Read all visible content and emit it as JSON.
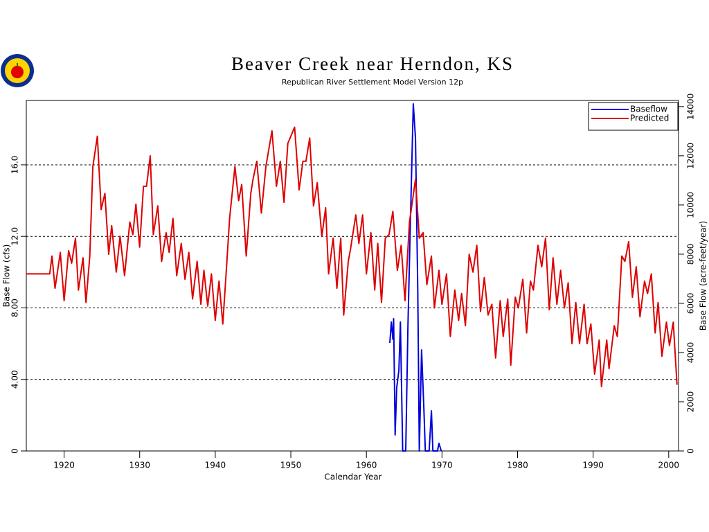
{
  "chart_data": {
    "type": "line",
    "title": "Beaver Creek near Herndon, KS",
    "subtitle": "Republican River Settlement Model Version 12p",
    "xlabel": "Calendar Year",
    "ylabel": "Base Flow (cfs)",
    "y2label": "Base Flow (acre-feet/year)",
    "xlim": [
      1915,
      2001.3
    ],
    "xticks": [
      1920,
      1930,
      1940,
      1950,
      1960,
      1970,
      1980,
      1990,
      2000
    ],
    "ylim": [
      0,
      19.6
    ],
    "yticks": [
      0,
      {
        "value": 4,
        "label": "4.00"
      },
      {
        "value": 8,
        "label": "8.00"
      },
      {
        "value": 12,
        "label": "12.0"
      },
      {
        "value": 16,
        "label": "16.0"
      }
    ],
    "y2lim": [
      0,
      14250
    ],
    "y2ticks": [
      0,
      2000,
      4000,
      6000,
      8000,
      10000,
      12000,
      14000
    ],
    "grid": true,
    "legend": "upper right",
    "series": [
      {
        "name": "Baseflow",
        "color": "#0000dd",
        "axis": "y2",
        "x": [
          1963.1,
          1963.3,
          1963.5,
          1963.6,
          1963.8,
          1964,
          1964.3,
          1964.5,
          1964.8,
          1965.2,
          1965.5,
          1965.8,
          1966.2,
          1966.5,
          1966.8,
          1967,
          1967.3,
          1967.6,
          1967.8,
          1968.3,
          1968.6,
          1968.8,
          1969.4,
          1969.6,
          1969.9
        ],
        "values": [
          4390,
          5240,
          4540,
          5380,
          650,
          2560,
          3270,
          5240,
          0,
          0,
          5100,
          9040,
          14110,
          12700,
          6510,
          0,
          4110,
          1720,
          0,
          0,
          1630,
          0,
          0,
          310,
          0
        ]
      },
      {
        "name": "Predicted",
        "color": "#dd0000",
        "x": [
          1915,
          1918.1,
          1918.4,
          1918.8,
          1919.5,
          1920,
          1920.6,
          1921,
          1921.5,
          1921.9,
          1922.5,
          1922.9,
          1923.4,
          1923.8,
          1924.4,
          1924.9,
          1925.4,
          1925.9,
          1926.3,
          1926.9,
          1927.4,
          1928,
          1928.7,
          1929.1,
          1929.5,
          1930,
          1930.5,
          1930.9,
          1931.4,
          1931.8,
          1932.4,
          1932.9,
          1933.5,
          1933.9,
          1934.4,
          1934.9,
          1935.5,
          1936,
          1936.5,
          1937,
          1937.6,
          1938.1,
          1938.5,
          1939,
          1939.5,
          1940,
          1940.5,
          1941,
          1941.4,
          1941.9,
          1942.6,
          1943.1,
          1943.5,
          1944.1,
          1944.7,
          1945,
          1945.5,
          1946.1,
          1946.7,
          1947.5,
          1948.1,
          1948.6,
          1949.1,
          1949.6,
          1950.1,
          1950.5,
          1951.1,
          1951.6,
          1952,
          1952.5,
          1953,
          1953.5,
          1954.1,
          1954.6,
          1955,
          1955.6,
          1956.1,
          1956.6,
          1957,
          1957.6,
          1957.9,
          1958.6,
          1959,
          1959.5,
          1960,
          1960.6,
          1961.1,
          1961.5,
          1962,
          1962.5,
          1963,
          1963.5,
          1964.1,
          1964.6,
          1965.1,
          1965.7,
          1966.5,
          1967,
          1967.5,
          1968,
          1968.6,
          1969,
          1969.6,
          1970,
          1970.6,
          1971.1,
          1971.7,
          1972.2,
          1972.6,
          1973.1,
          1973.6,
          1974.1,
          1974.6,
          1975.1,
          1975.6,
          1976.1,
          1976.6,
          1977.1,
          1977.7,
          1978.1,
          1978.7,
          1979.1,
          1979.7,
          1980.1,
          1980.7,
          1981.2,
          1981.7,
          1982.1,
          1982.7,
          1983.2,
          1983.7,
          1984.2,
          1984.7,
          1985.2,
          1985.7,
          1986.2,
          1986.7,
          1987.2,
          1987.7,
          1988.2,
          1988.8,
          1989.2,
          1989.7,
          1990.2,
          1990.8,
          1991.1,
          1991.8,
          1992.1,
          1992.8,
          1993.2,
          1993.8,
          1994.2,
          1994.7,
          1995.2,
          1995.7,
          1996.2,
          1996.8,
          1997.2,
          1997.7,
          1998.2,
          1998.6,
          1999.1,
          1999.7,
          2000.1,
          2000.6,
          2001.1
        ],
        "values": [
          9.9,
          9.9,
          10.9,
          9.1,
          11.1,
          8.4,
          11.2,
          10.5,
          11.9,
          9.0,
          10.8,
          8.3,
          10.9,
          15.9,
          17.6,
          13.5,
          14.4,
          11.0,
          12.6,
          10.0,
          12.0,
          9.8,
          12.8,
          12.1,
          13.8,
          11.4,
          14.8,
          14.8,
          16.5,
          12.1,
          13.7,
          10.6,
          12.2,
          11.1,
          13.0,
          9.8,
          11.6,
          9.6,
          11.1,
          8.5,
          10.6,
          8.2,
          10.1,
          8.1,
          9.9,
          7.3,
          9.5,
          7.1,
          9.7,
          13.0,
          15.9,
          14.0,
          14.9,
          10.9,
          14.4,
          15.2,
          16.2,
          13.3,
          15.9,
          17.9,
          14.8,
          16.2,
          13.9,
          17.2,
          17.7,
          18.1,
          14.6,
          16.2,
          16.2,
          17.5,
          13.7,
          15.0,
          12.0,
          13.6,
          9.9,
          11.9,
          9.1,
          11.9,
          7.6,
          10.6,
          11.3,
          13.2,
          11.6,
          13.2,
          9.9,
          12.2,
          9.0,
          11.6,
          8.3,
          11.9,
          12.1,
          13.4,
          10.1,
          11.5,
          8.4,
          12.8,
          15.2,
          11.9,
          12.2,
          9.3,
          10.9,
          8.0,
          10.1,
          8.2,
          9.9,
          6.4,
          9.0,
          7.3,
          8.8,
          7.0,
          11.0,
          10.0,
          11.5,
          7.8,
          9.7,
          7.6,
          8.2,
          5.2,
          8.4,
          6.4,
          8.5,
          4.8,
          8.6,
          8.0,
          9.6,
          6.6,
          9.5,
          9.0,
          11.5,
          10.3,
          11.9,
          7.9,
          10.8,
          8.2,
          10.1,
          8.0,
          9.4,
          6.0,
          8.3,
          6.0,
          8.2,
          6.0,
          7.1,
          4.3,
          6.2,
          3.6,
          6.2,
          4.6,
          7.0,
          6.4,
          10.9,
          10.6,
          11.7,
          8.6,
          10.3,
          7.5,
          9.5,
          8.8,
          9.9,
          6.6,
          8.3,
          5.3,
          7.2,
          5.9,
          7.2,
          3.7
        ]
      }
    ]
  }
}
